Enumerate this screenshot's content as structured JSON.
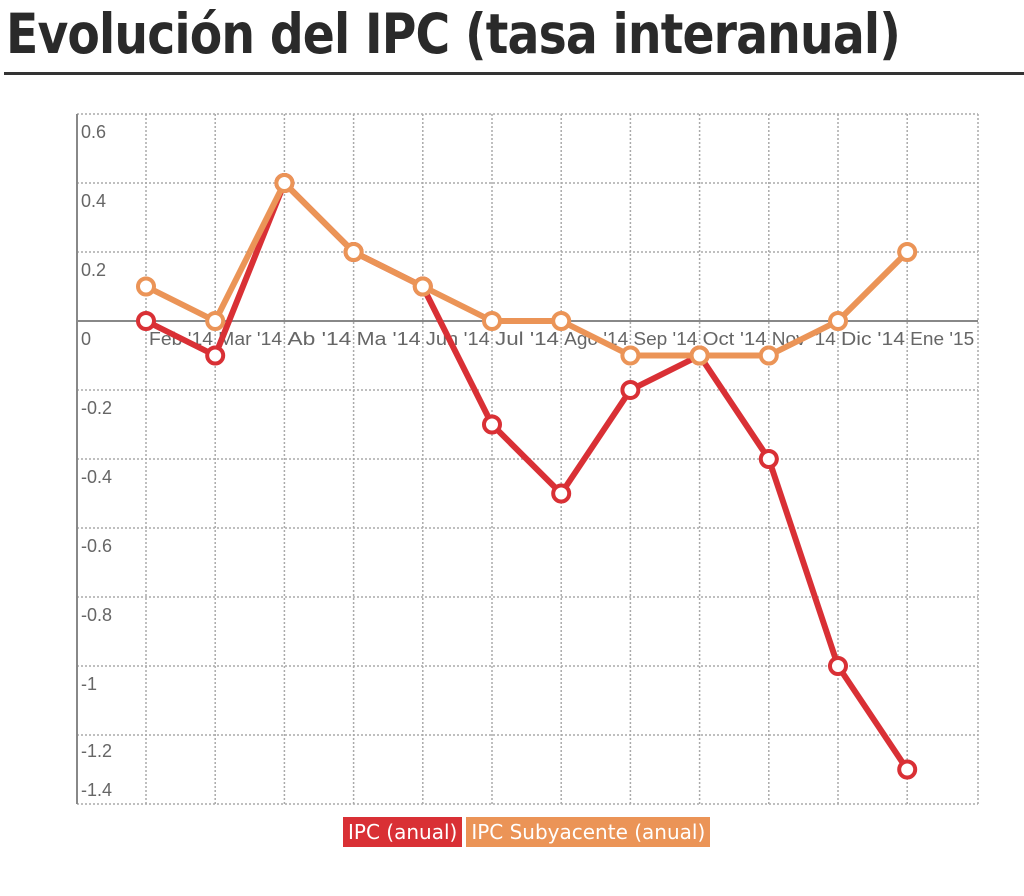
{
  "title": "Evolución del IPC (tasa interanual)",
  "legend": [
    {
      "label": "IPC (anual)",
      "color": "#d93035"
    },
    {
      "label": "IPC Subyacente (anual)",
      "color": "#eb9457"
    }
  ],
  "chart_data": {
    "type": "line",
    "title": "Evolución del IPC (tasa interanual)",
    "xlabel": "",
    "ylabel": "",
    "categories": [
      "Feb '14",
      "Mar '14",
      "Ab '14",
      "Ma '14",
      "Jun '14",
      "Jul '14",
      "Ago '14",
      "Sep '14",
      "Oct '14",
      "Nov '14",
      "Dic '14",
      "Ene '15"
    ],
    "yticks": [
      "0.6",
      "0.4",
      "0.2",
      "0",
      "-0.2",
      "-0.4",
      "-0.6",
      "-0.8",
      "-1",
      "-1.2",
      "-1.4"
    ],
    "ylim": [
      -1.4,
      0.6
    ],
    "grid": true,
    "legend_position": "bottom",
    "series": [
      {
        "name": "IPC (anual)",
        "color": "#d93035",
        "values": [
          0,
          -0.1,
          0.4,
          0.2,
          0.1,
          -0.3,
          -0.5,
          -0.2,
          -0.1,
          -0.4,
          -1.0,
          -1.3
        ]
      },
      {
        "name": "IPC Subyacente (anual)",
        "color": "#eb9457",
        "values": [
          0.1,
          0,
          0.4,
          0.2,
          0.1,
          0,
          0,
          -0.1,
          -0.1,
          -0.1,
          0,
          0.2
        ]
      }
    ]
  }
}
